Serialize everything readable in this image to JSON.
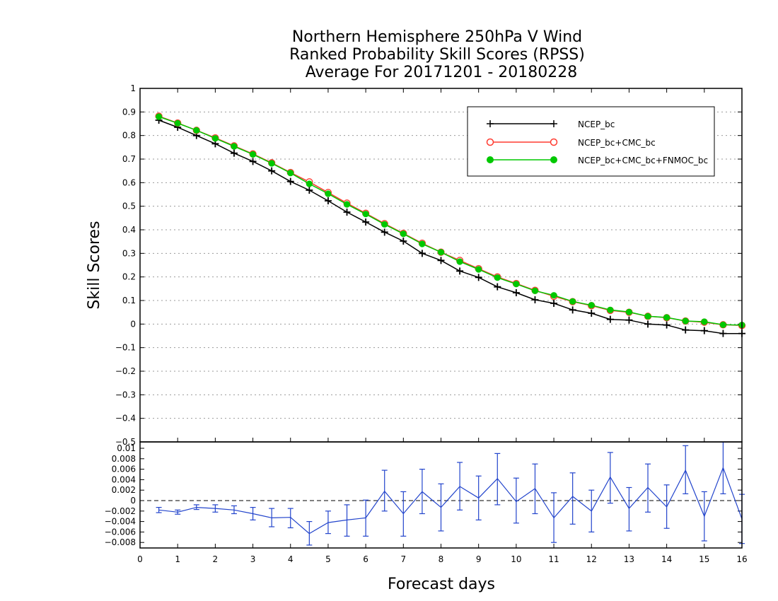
{
  "chart_data": [
    {
      "type": "line",
      "title": [
        "Northern Hemisphere 250hPa V Wind",
        "Ranked Probability Skill Scores (RPSS)",
        "Average For 20171201 - 20180228"
      ],
      "ylabel": "Skill Scores",
      "xlim": [
        0,
        16
      ],
      "ylim": [
        -0.5,
        1
      ],
      "yticks": [
        1,
        0.9,
        0.8,
        0.7,
        0.6,
        0.5,
        0.4,
        0.3,
        0.2,
        0.1,
        0,
        -0.1,
        -0.2,
        -0.3,
        -0.4,
        -0.5
      ],
      "ytick_labels": [
        "1",
        "0.9",
        "0.8",
        "0.7",
        "0.6",
        "0.5",
        "0.4",
        "0.3",
        "0.2",
        "0.1",
        "0",
        "−0.1",
        "−0.2",
        "−0.3",
        "−0.4",
        "−0.5"
      ],
      "grid": "dotted",
      "legend_position": "top-right",
      "x": [
        0.5,
        1,
        1.5,
        2,
        2.5,
        3,
        3.5,
        4,
        4.5,
        5,
        5.5,
        6,
        6.5,
        7,
        7.5,
        8,
        8.5,
        9,
        9.5,
        10,
        10.5,
        11,
        11.5,
        12,
        12.5,
        13,
        13.5,
        14,
        14.5,
        15,
        15.5,
        16
      ],
      "series": [
        {
          "name": "NCEP_bc",
          "color": "#000000",
          "marker": "plus",
          "values": [
            0.865,
            0.835,
            0.8,
            0.765,
            0.725,
            0.69,
            0.65,
            0.605,
            0.568,
            0.523,
            0.475,
            0.433,
            0.39,
            0.352,
            0.3,
            0.27,
            0.225,
            0.198,
            0.158,
            0.133,
            0.103,
            0.088,
            0.06,
            0.046,
            0.02,
            0.017,
            0.0,
            -0.004,
            -0.025,
            -0.028,
            -0.04,
            -0.04
          ]
        },
        {
          "name": "NCEP_bc+CMC_bc",
          "color": "#ff3b30",
          "marker": "open-circle",
          "values": [
            0.882,
            0.853,
            0.822,
            0.79,
            0.756,
            0.722,
            0.684,
            0.643,
            0.603,
            0.558,
            0.513,
            0.47,
            0.426,
            0.385,
            0.343,
            0.305,
            0.27,
            0.235,
            0.2,
            0.172,
            0.143,
            0.118,
            0.095,
            0.078,
            0.058,
            0.05,
            0.033,
            0.027,
            0.013,
            0.008,
            -0.003,
            -0.006
          ]
        },
        {
          "name": "NCEP_bc+CMC_bc+FNMOC_bc",
          "color": "#00c800",
          "marker": "filled-circle",
          "values": [
            0.88,
            0.852,
            0.822,
            0.788,
            0.754,
            0.72,
            0.682,
            0.641,
            0.595,
            0.553,
            0.508,
            0.467,
            0.423,
            0.383,
            0.34,
            0.305,
            0.265,
            0.232,
            0.197,
            0.17,
            0.141,
            0.122,
            0.096,
            0.08,
            0.06,
            0.051,
            0.033,
            0.028,
            0.013,
            0.01,
            -0.003,
            -0.004
          ]
        }
      ]
    },
    {
      "type": "line",
      "xlabel": "Forecast days",
      "xlim": [
        0,
        16
      ],
      "xticks": [
        0,
        1,
        2,
        3,
        4,
        5,
        6,
        7,
        8,
        9,
        10,
        11,
        12,
        13,
        14,
        15,
        16
      ],
      "ylim": [
        -0.009,
        0.0105
      ],
      "yticks": [
        0.01,
        0.008,
        0.006,
        0.004,
        0.002,
        0,
        -0.002,
        -0.004,
        -0.006,
        -0.008
      ],
      "ytick_labels": [
        "0.01",
        "0.008",
        "0.006",
        "0.004",
        "0.002",
        "0",
        "−0.002",
        "−0.004",
        "−0.006",
        "−0.008"
      ],
      "zero_line": "dashed",
      "x": [
        0.5,
        1,
        1.5,
        2,
        2.5,
        3,
        3.5,
        4,
        4.5,
        5,
        5.5,
        6,
        6.5,
        7,
        7.5,
        8,
        8.5,
        9,
        9.5,
        10,
        10.5,
        11,
        11.5,
        12,
        12.5,
        13,
        13.5,
        14,
        14.5,
        15,
        15.5,
        16
      ],
      "series": [
        {
          "name": "difference",
          "color": "#2244cc",
          "values": [
            -0.0018,
            -0.0022,
            -0.0013,
            -0.0015,
            -0.0018,
            -0.0025,
            -0.0033,
            -0.0032,
            -0.0063,
            -0.0042,
            -0.0037,
            -0.0033,
            0.0018,
            -0.0025,
            0.0017,
            -0.0013,
            0.0027,
            0.0005,
            0.0042,
            -0.0002,
            0.0023,
            -0.0033,
            0.0008,
            -0.002,
            0.0045,
            -0.0015,
            0.0025,
            -0.0012,
            0.0058,
            -0.003,
            0.0063,
            -0.0035
          ],
          "upper": [
            -0.0013,
            -0.0018,
            -0.0008,
            -0.0008,
            -0.001,
            -0.0013,
            -0.0015,
            -0.0015,
            -0.004,
            -0.002,
            -0.0008,
            0.0001,
            0.0058,
            0.0017,
            0.006,
            0.0032,
            0.0073,
            0.0047,
            0.009,
            0.0043,
            0.007,
            0.0015,
            0.0053,
            0.002,
            0.0092,
            0.0025,
            0.007,
            0.003,
            0.0105,
            0.0017,
            0.0112,
            0.0012
          ],
          "lower": [
            -0.0023,
            -0.0026,
            -0.0017,
            -0.0022,
            -0.0025,
            -0.0037,
            -0.005,
            -0.0052,
            -0.0085,
            -0.0063,
            -0.0068,
            -0.0068,
            -0.002,
            -0.0068,
            -0.0025,
            -0.0058,
            -0.0018,
            -0.0037,
            -0.0008,
            -0.0043,
            -0.0025,
            -0.008,
            -0.0045,
            -0.006,
            -0.0005,
            -0.0058,
            -0.0022,
            -0.0053,
            0.0013,
            -0.0077,
            0.0013,
            -0.0082
          ]
        }
      ]
    }
  ]
}
